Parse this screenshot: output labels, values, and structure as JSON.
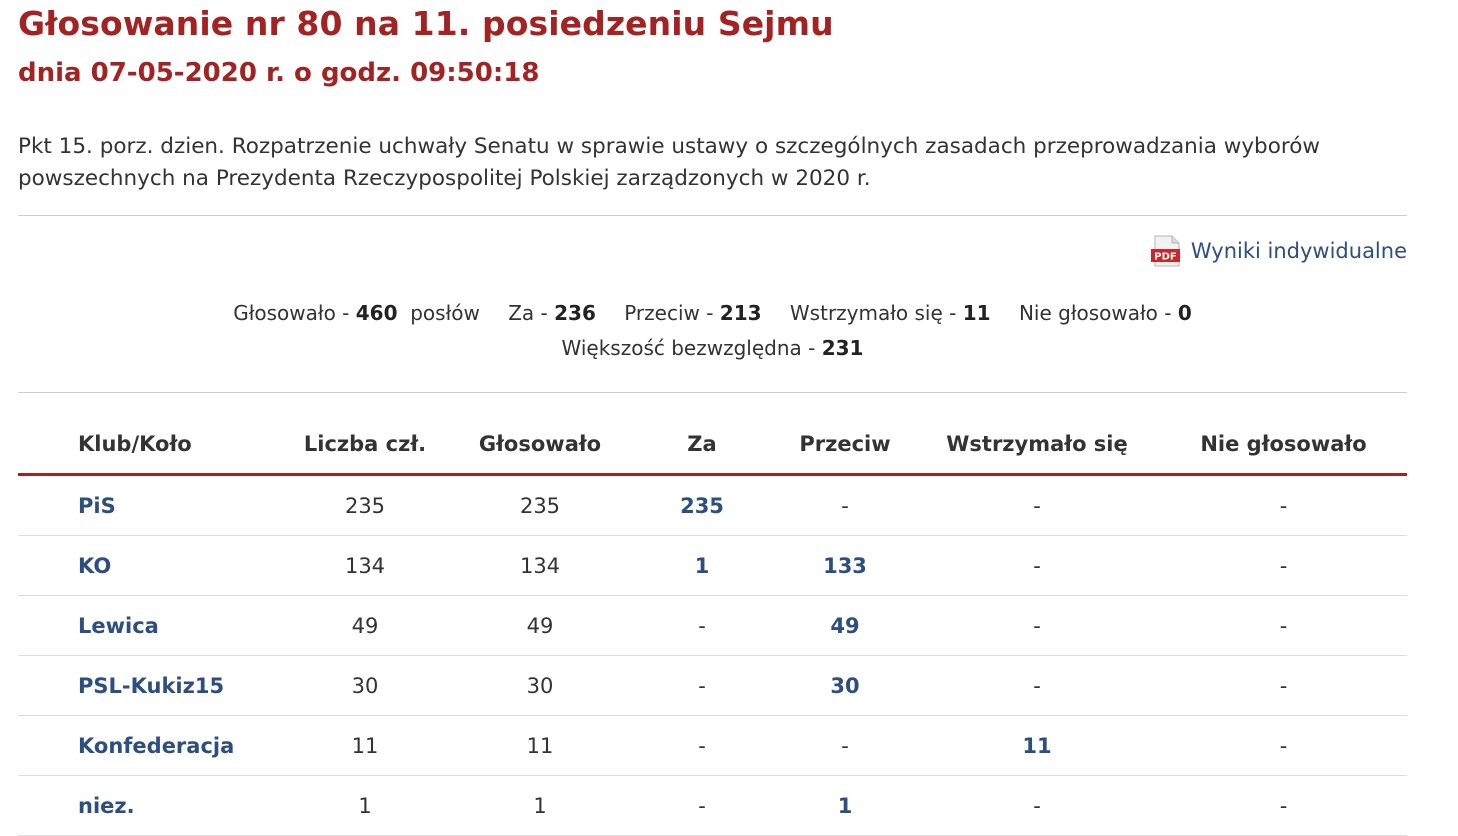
{
  "header": {
    "title": "Głosowanie nr 80 na 11. posiedzeniu Sejmu",
    "subtitle": "dnia 07-05-2020 r. o godz. 09:50:18"
  },
  "description": "Pkt 15. porz. dzien. Rozpatrzenie uchwały Senatu w sprawie ustawy o szczególnych zasadach przeprowadzania wyborów powszechnych na Prezydenta Rzeczypospolitej Polskiej zarządzonych w 2020 r.",
  "pdf_link": {
    "icon": "pdf-icon",
    "label": "Wyniki indywidualne"
  },
  "summary": {
    "voted_label": "Głosowało -",
    "voted_value": "460",
    "voted_unit": "posłów",
    "for_label": "Za -",
    "for_value": "236",
    "against_label": "Przeciw -",
    "against_value": "213",
    "abstain_label": "Wstrzymało się -",
    "abstain_value": "11",
    "absent_label": "Nie głosowało -",
    "absent_value": "0",
    "majority_label": "Większość bezwzględna -",
    "majority_value": "231"
  },
  "table": {
    "columns": [
      "Klub/Koło",
      "Liczba czł.",
      "Głosowało",
      "Za",
      "Przeciw",
      "Wstrzymało się",
      "Nie głosowało"
    ],
    "rows": [
      {
        "club": "PiS",
        "members": "235",
        "voted": "235",
        "for": "235",
        "against": "-",
        "abstain": "-",
        "absent": "-"
      },
      {
        "club": "KO",
        "members": "134",
        "voted": "134",
        "for": "1",
        "against": "133",
        "abstain": "-",
        "absent": "-"
      },
      {
        "club": "Lewica",
        "members": "49",
        "voted": "49",
        "for": "-",
        "against": "49",
        "abstain": "-",
        "absent": "-"
      },
      {
        "club": "PSL-Kukiz15",
        "members": "30",
        "voted": "30",
        "for": "-",
        "against": "30",
        "abstain": "-",
        "absent": "-"
      },
      {
        "club": "Konfederacja",
        "members": "11",
        "voted": "11",
        "for": "-",
        "against": "-",
        "abstain": "11",
        "absent": "-"
      },
      {
        "club": "niez.",
        "members": "1",
        "voted": "1",
        "for": "-",
        "against": "1",
        "abstain": "-",
        "absent": "-"
      }
    ]
  },
  "colors": {
    "accent": "#a32222",
    "link": "#2d4e80",
    "text": "#333333"
  }
}
